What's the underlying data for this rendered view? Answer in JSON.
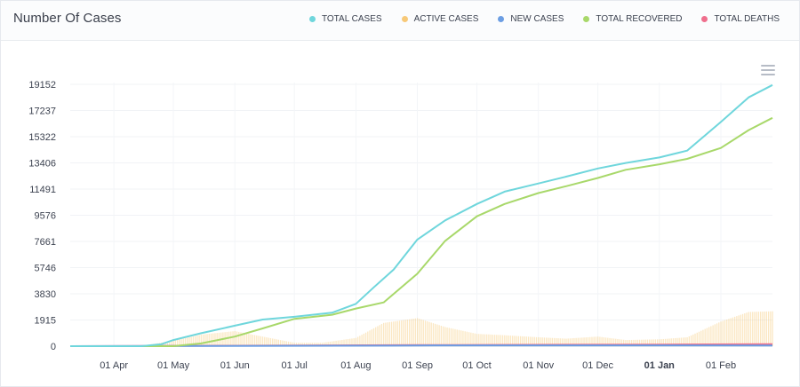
{
  "header": {
    "title": "Number Of Cases"
  },
  "legend": [
    {
      "label": "TOTAL CASES",
      "color": "#6fd6dc"
    },
    {
      "label": "ACTIVE CASES",
      "color": "#f7c978"
    },
    {
      "label": "NEW CASES",
      "color": "#6c9ee3"
    },
    {
      "label": "TOTAL RECOVERED",
      "color": "#a8d86a"
    },
    {
      "label": "TOTAL DEATHS",
      "color": "#ef6f8d"
    }
  ],
  "chart_data": {
    "type": "line",
    "grid": true,
    "legend_position": "top-right",
    "y_ticks": [
      "19152",
      "17237",
      "15322",
      "13406",
      "11491",
      "9576",
      "7661",
      "5746",
      "3830",
      "1915",
      "0"
    ],
    "ylim": [
      0,
      19152
    ],
    "x_ticks": [
      "01 Apr",
      "01 May",
      "01 Jun",
      "01 Jul",
      "01 Aug",
      "01 Sep",
      "01 Oct",
      "01 Nov",
      "01 Dec",
      "01 Jan",
      "01 Feb"
    ],
    "x_bold_tick": "01 Jan",
    "x_start": "2020-03-10",
    "x_end": "2021-02-27",
    "series": [
      {
        "name": "TOTAL CASES",
        "color": "#6fd6dc",
        "points": [
          [
            "2020-03-10",
            0
          ],
          [
            "2020-04-15",
            0
          ],
          [
            "2020-04-25",
            150
          ],
          [
            "2020-05-01",
            450
          ],
          [
            "2020-05-15",
            950
          ],
          [
            "2020-06-01",
            1500
          ],
          [
            "2020-06-15",
            1950
          ],
          [
            "2020-07-01",
            2150
          ],
          [
            "2020-07-20",
            2450
          ],
          [
            "2020-08-01",
            3100
          ],
          [
            "2020-08-10",
            4300
          ],
          [
            "2020-08-20",
            5600
          ],
          [
            "2020-09-01",
            7800
          ],
          [
            "2020-09-15",
            9200
          ],
          [
            "2020-10-01",
            10400
          ],
          [
            "2020-10-15",
            11300
          ],
          [
            "2020-11-01",
            11900
          ],
          [
            "2020-11-15",
            12400
          ],
          [
            "2020-12-01",
            13000
          ],
          [
            "2020-12-15",
            13400
          ],
          [
            "2021-01-01",
            13800
          ],
          [
            "2021-01-15",
            14300
          ],
          [
            "2021-02-01",
            16400
          ],
          [
            "2021-02-15",
            18200
          ],
          [
            "2021-02-27",
            19100
          ]
        ]
      },
      {
        "name": "TOTAL RECOVERED",
        "color": "#a8d86a",
        "points": [
          [
            "2020-03-10",
            0
          ],
          [
            "2020-05-01",
            0
          ],
          [
            "2020-05-15",
            200
          ],
          [
            "2020-06-01",
            700
          ],
          [
            "2020-06-15",
            1300
          ],
          [
            "2020-07-01",
            2000
          ],
          [
            "2020-07-20",
            2300
          ],
          [
            "2020-08-01",
            2750
          ],
          [
            "2020-08-15",
            3200
          ],
          [
            "2020-09-01",
            5300
          ],
          [
            "2020-09-15",
            7700
          ],
          [
            "2020-10-01",
            9500
          ],
          [
            "2020-10-15",
            10400
          ],
          [
            "2020-11-01",
            11200
          ],
          [
            "2020-11-15",
            11700
          ],
          [
            "2020-12-01",
            12300
          ],
          [
            "2020-12-15",
            12900
          ],
          [
            "2021-01-01",
            13300
          ],
          [
            "2021-01-15",
            13700
          ],
          [
            "2021-02-01",
            14500
          ],
          [
            "2021-02-15",
            15800
          ],
          [
            "2021-02-27",
            16700
          ]
        ]
      },
      {
        "name": "ACTIVE CASES",
        "color": "#f7c978",
        "points": [
          [
            "2020-03-10",
            0
          ],
          [
            "2020-04-15",
            20
          ],
          [
            "2020-05-01",
            400
          ],
          [
            "2020-05-15",
            850
          ],
          [
            "2020-06-01",
            1100
          ],
          [
            "2020-06-15",
            700
          ],
          [
            "2020-07-01",
            250
          ],
          [
            "2020-07-15",
            250
          ],
          [
            "2020-08-01",
            600
          ],
          [
            "2020-08-15",
            1700
          ],
          [
            "2020-09-01",
            2050
          ],
          [
            "2020-09-15",
            1400
          ],
          [
            "2020-10-01",
            900
          ],
          [
            "2020-10-15",
            800
          ],
          [
            "2020-11-01",
            650
          ],
          [
            "2020-11-15",
            550
          ],
          [
            "2020-12-01",
            700
          ],
          [
            "2020-12-15",
            450
          ],
          [
            "2021-01-01",
            500
          ],
          [
            "2021-01-15",
            650
          ],
          [
            "2021-02-01",
            1800
          ],
          [
            "2021-02-15",
            2500
          ],
          [
            "2021-02-27",
            2550
          ]
        ]
      },
      {
        "name": "NEW CASES",
        "color": "#6c9ee3",
        "points": [
          [
            "2020-03-10",
            0
          ],
          [
            "2020-08-20",
            40
          ],
          [
            "2020-09-10",
            60
          ],
          [
            "2021-02-27",
            50
          ]
        ]
      },
      {
        "name": "TOTAL DEATHS",
        "color": "#ef6f8d",
        "points": [
          [
            "2020-03-10",
            0
          ],
          [
            "2020-06-01",
            30
          ],
          [
            "2020-09-01",
            80
          ],
          [
            "2021-01-01",
            120
          ],
          [
            "2021-02-27",
            150
          ]
        ]
      }
    ]
  }
}
